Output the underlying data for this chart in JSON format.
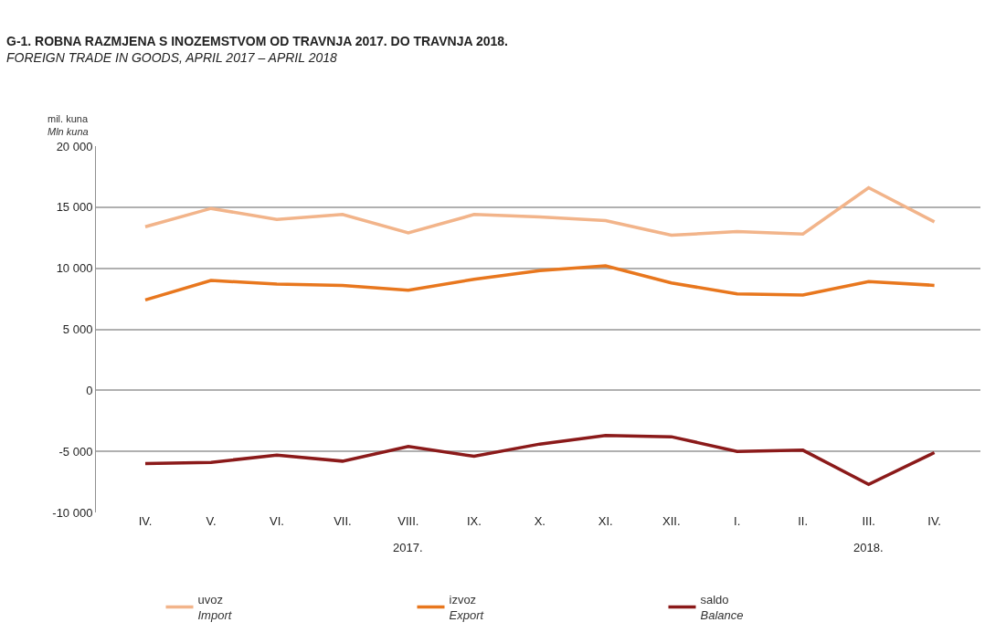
{
  "chart_data": {
    "type": "line",
    "title": "G-1. ROBNA RAZMJENA S INOZEMSTVOM OD TRAVNJA 2017. DO TRAVNJA 2018.",
    "subtitle": "FOREIGN TRADE IN GOODS, APRIL 2017 – APRIL 2018",
    "ylabel": "mil. kuna\nMln kuna",
    "categories": [
      "IV.",
      "V.",
      "VI.",
      "VII.",
      "VIII.",
      "IX.",
      "X.",
      "XI.",
      "XII.",
      "I.",
      "II.",
      "III.",
      "IV."
    ],
    "series": [
      {
        "name": "uvoz\nImport",
        "color": "#f2b48a",
        "values": [
          13400,
          14900,
          14000,
          14400,
          12900,
          14400,
          14200,
          13900,
          12700,
          13000,
          12800,
          16600,
          13800
        ]
      },
      {
        "name": "izvoz\nExport",
        "color": "#e8771e",
        "values": [
          7400,
          9000,
          8700,
          8600,
          8200,
          9100,
          9800,
          10200,
          8800,
          7900,
          7800,
          8900,
          8600
        ]
      },
      {
        "name": "saldo\nBalance",
        "color": "#8b1a1a",
        "values": [
          -6000,
          -5900,
          -5300,
          -5800,
          -4600,
          -5400,
          -4400,
          -3700,
          -3800,
          -5000,
          -4900,
          -7700,
          -5100
        ]
      }
    ],
    "annotations": [
      "2017.",
      "2018."
    ],
    "ylim": [
      -10000,
      20000
    ],
    "yticks": [
      {
        "value": -10000,
        "label": "-10 000"
      },
      {
        "value": -5000,
        "label": "-5 000"
      },
      0,
      {
        "value": 5000,
        "label": "5 000"
      },
      {
        "value": 10000,
        "label": "10 000"
      },
      {
        "value": 15000,
        "label": "15 000"
      },
      {
        "value": 20000,
        "label": "20 000"
      }
    ],
    "grid": "y",
    "legend": "bottom",
    "marker": "none",
    "line_style": "solid"
  }
}
